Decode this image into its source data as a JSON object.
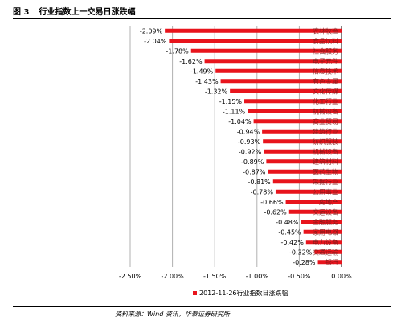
{
  "figure": {
    "number": "图 3",
    "title": "行业指数上一交易日涨跌幅",
    "source": "资料来源：Wind 资讯，华泰证券研究所"
  },
  "colors": {
    "bar": "#e8141c",
    "grid": "#b0b0b0",
    "axis": "#000000"
  },
  "chart_data": {
    "type": "bar",
    "orientation": "horizontal",
    "title": "",
    "xlabel": "",
    "ylabel": "",
    "xlim": [
      -0.025,
      0.0
    ],
    "x_ticks": [
      "-2.50%",
      "-2.00%",
      "-1.50%",
      "-1.00%",
      "-0.50%",
      "0.00%"
    ],
    "grid": "vertical",
    "legend_position": "bottom",
    "categories": [
      "农林牧渔",
      "食品饮料",
      "社会服务",
      "电子元件",
      "信息技术",
      "有色金属",
      "文化传媒",
      "化工行业",
      "机械设备",
      "商业贸易",
      "建筑行业",
      "纺织服装",
      "机械设备",
      "建筑材料",
      "医药生物",
      "采掘行业",
      "公用事业",
      "房地产",
      "交运设备",
      "金融服务",
      "家用电器",
      "电力设备",
      "交通运输",
      "银行"
    ],
    "series": [
      {
        "name": "2012-11-26行业指数日涨跌幅",
        "values": [
          -0.0209,
          -0.0204,
          -0.0178,
          -0.0162,
          -0.0149,
          -0.0143,
          -0.0132,
          -0.0115,
          -0.0111,
          -0.0104,
          -0.0094,
          -0.0093,
          -0.0092,
          -0.0089,
          -0.0087,
          -0.0081,
          -0.0078,
          -0.0066,
          -0.0062,
          -0.0048,
          -0.0045,
          -0.0042,
          -0.0032,
          -0.0028
        ],
        "labels": [
          "-2.09%",
          "-2.04%",
          "-1.78%",
          "-1.62%",
          "-1.49%",
          "-1.43%",
          "-1.32%",
          "-1.15%",
          "-1.11%",
          "-1.04%",
          "-0.94%",
          "-0.93%",
          "-0.92%",
          "-0.89%",
          "-0.87%",
          "-0.81%",
          "-0.78%",
          "-0.66%",
          "-0.62%",
          "-0.48%",
          "-0.45%",
          "-0.42%",
          "-0.32%",
          "-0.28%"
        ]
      }
    ]
  }
}
